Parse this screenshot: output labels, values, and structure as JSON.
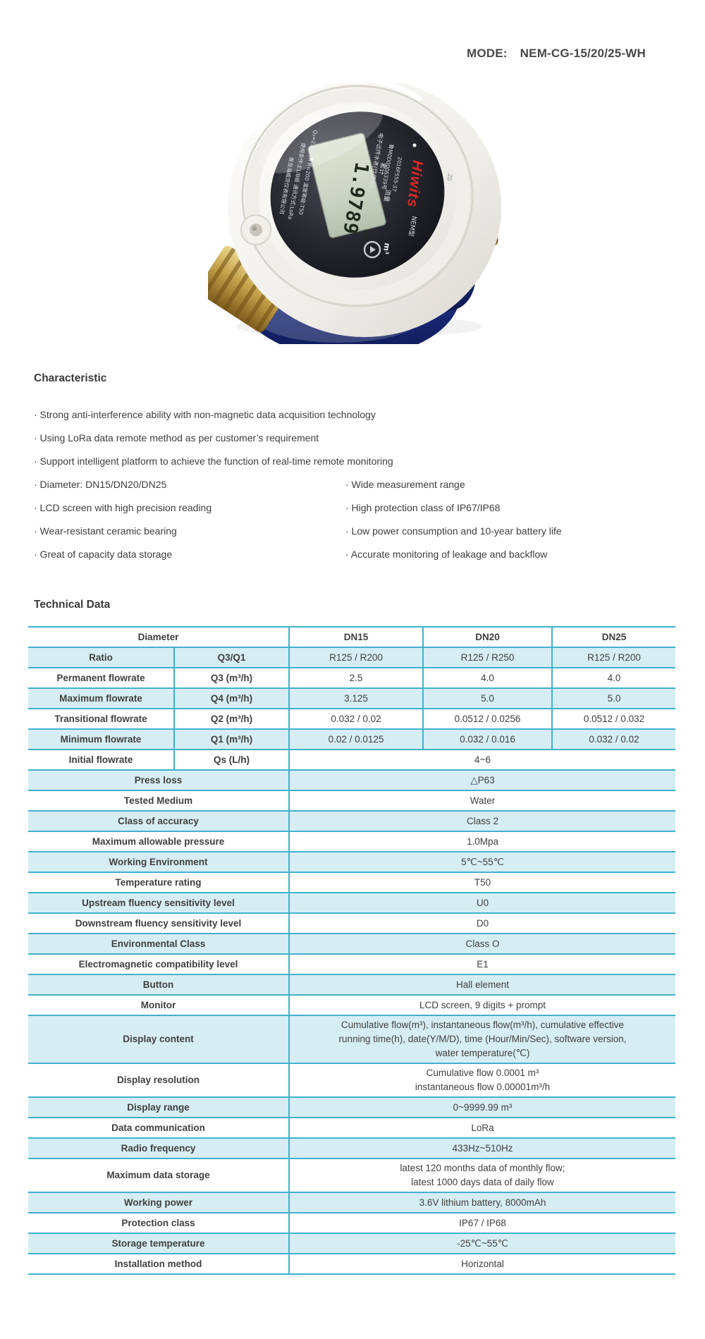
{
  "header": {
    "mode_label": "MODE:",
    "mode_value": "NEM-CG-15/20/25-WH"
  },
  "product_photo": {
    "brand": "Hiwits",
    "lcd_value": "1.9789",
    "lcd_unit_small": "m³",
    "dial_unit": "m³",
    "meter_size_mark": "20",
    "dial_text": {
      "line_type": "电子远传水表(饮用水)",
      "line_serial": "鲁M0D0006339号",
      "line_approval": "2016F555-37",
      "line_model": "NEM型",
      "line_spec": "Q₃=2.5m³/h  R=200  温度等级:T50",
      "line_condition": "使用条件:E1/B级  通讯方式:LoRa",
      "line_company": "青岛海威茨仪表有限公司",
      "label_cumulative": "累计",
      "label_flow": "流量"
    }
  },
  "characteristic": {
    "title": "Characteristic",
    "bullets": [
      "· Strong anti-interference ability with non-magnetic data acquisition technology",
      "· Using LoRa data remote method as per customer’s requirement",
      "· Support intelligent platform to achieve the function of real-time remote monitoring"
    ],
    "columns": {
      "left": [
        "· Diameter: DN15/DN20/DN25",
        "· LCD screen with high precision reading",
        "· Wear-resistant ceramic bearing",
        "· Great of capacity data storage"
      ],
      "right": [
        "· Wide measurement range",
        "· High protection class of IP67/IP68",
        "· Low power consumption and 10-year battery life",
        "· Accurate monitoring of leakage and backflow"
      ]
    }
  },
  "technical": {
    "title": "Technical Data",
    "table": {
      "rows": [
        {
          "bg": "white",
          "cells": [
            {
              "t": "Diameter",
              "b": true,
              "span": 2
            },
            {
              "t": "DN15",
              "b": true
            },
            {
              "t": "DN20",
              "b": true
            },
            {
              "t": "DN25",
              "b": true
            }
          ]
        },
        {
          "bg": "blue",
          "cells": [
            {
              "t": "Ratio",
              "b": true
            },
            {
              "t": "Q3/Q1",
              "b": true
            },
            {
              "t": "R125 / R200"
            },
            {
              "t": "R125 / R250"
            },
            {
              "t": "R125 / R200"
            }
          ]
        },
        {
          "bg": "white",
          "cells": [
            {
              "t": "Permanent flowrate",
              "b": true
            },
            {
              "t": "Q3 (m³/h)",
              "b": true
            },
            {
              "t": "2.5"
            },
            {
              "t": "4.0"
            },
            {
              "t": "4.0"
            }
          ]
        },
        {
          "bg": "blue",
          "cells": [
            {
              "t": "Maximum flowrate",
              "b": true
            },
            {
              "t": "Q4 (m³/h)",
              "b": true
            },
            {
              "t": "3.125"
            },
            {
              "t": "5.0"
            },
            {
              "t": "5.0"
            }
          ]
        },
        {
          "bg": "white",
          "cells": [
            {
              "t": "Transitional flowrate",
              "b": true
            },
            {
              "t": "Q2 (m³/h)",
              "b": true
            },
            {
              "t": "0.032 / 0.02"
            },
            {
              "t": "0.0512 / 0.0256"
            },
            {
              "t": "0.0512 / 0.032"
            }
          ]
        },
        {
          "bg": "blue",
          "cells": [
            {
              "t": "Minimum flowrate",
              "b": true
            },
            {
              "t": "Q1 (m³/h)",
              "b": true
            },
            {
              "t": "0.02 / 0.0125"
            },
            {
              "t": "0.032 / 0.016"
            },
            {
              "t": "0.032 / 0.02"
            }
          ]
        },
        {
          "bg": "white",
          "cells": [
            {
              "t": "Initial flowrate",
              "b": true
            },
            {
              "t": "Qs (L/h)",
              "b": true
            },
            {
              "t": "4~6",
              "span": 3
            }
          ]
        },
        {
          "bg": "blue",
          "cells": [
            {
              "t": "Press loss",
              "b": true,
              "span": 2
            },
            {
              "t": "△P63",
              "span": 3
            }
          ]
        },
        {
          "bg": "white",
          "cells": [
            {
              "t": "Tested Medium",
              "b": true,
              "span": 2
            },
            {
              "t": "Water",
              "span": 3
            }
          ]
        },
        {
          "bg": "blue",
          "cells": [
            {
              "t": "Class of accuracy",
              "b": true,
              "span": 2
            },
            {
              "t": "Class 2",
              "span": 3
            }
          ]
        },
        {
          "bg": "white",
          "cells": [
            {
              "t": "Maximum allowable pressure",
              "b": true,
              "span": 2
            },
            {
              "t": "1.0Mpa",
              "span": 3
            }
          ]
        },
        {
          "bg": "blue",
          "cells": [
            {
              "t": "Working Environment",
              "b": true,
              "span": 2
            },
            {
              "t": "5℃~55℃",
              "span": 3
            }
          ]
        },
        {
          "bg": "white",
          "cells": [
            {
              "t": "Temperature rating",
              "b": true,
              "span": 2
            },
            {
              "t": "T50",
              "span": 3
            }
          ]
        },
        {
          "bg": "blue",
          "cells": [
            {
              "t": "Upstream fluency sensitivity level",
              "b": true,
              "span": 2
            },
            {
              "t": "U0",
              "span": 3
            }
          ]
        },
        {
          "bg": "white",
          "cells": [
            {
              "t": "Downstream fluency sensitivity level",
              "b": true,
              "span": 2
            },
            {
              "t": "D0",
              "span": 3
            }
          ]
        },
        {
          "bg": "blue",
          "cells": [
            {
              "t": "Environmental Class",
              "b": true,
              "span": 2
            },
            {
              "t": "Class O",
              "span": 3
            }
          ]
        },
        {
          "bg": "white",
          "cells": [
            {
              "t": "Electromagnetic compatibility level",
              "b": true,
              "span": 2
            },
            {
              "t": "E1",
              "span": 3
            }
          ]
        },
        {
          "bg": "blue",
          "cells": [
            {
              "t": "Button",
              "b": true,
              "span": 2
            },
            {
              "t": "Hall element",
              "span": 3
            }
          ]
        },
        {
          "bg": "white",
          "cells": [
            {
              "t": "Monitor",
              "b": true,
              "span": 2
            },
            {
              "t": "LCD screen, 9 digits + prompt",
              "span": 3
            }
          ]
        },
        {
          "bg": "blue",
          "cells": [
            {
              "t": "Display content",
              "b": true,
              "span": 2
            },
            {
              "t": "Cumulative flow(m³), instantaneous flow(m³/h), cumulative effective\nrunning time(h), date(Y/M/D), time (Hour/Min/Sec), software version,\nwater temperature(℃)",
              "span": 3
            }
          ]
        },
        {
          "bg": "white",
          "cells": [
            {
              "t": "Display resolution",
              "b": true,
              "span": 2
            },
            {
              "t": "Cumulative flow 0.0001 m³\ninstantaneous flow 0.00001m³/h",
              "span": 3
            }
          ]
        },
        {
          "bg": "blue",
          "cells": [
            {
              "t": "Display range",
              "b": true,
              "span": 2
            },
            {
              "t": "0~9999.99 m³",
              "span": 3
            }
          ]
        },
        {
          "bg": "white",
          "cells": [
            {
              "t": "Data communication",
              "b": true,
              "span": 2
            },
            {
              "t": "LoRa",
              "span": 3
            }
          ]
        },
        {
          "bg": "blue",
          "cells": [
            {
              "t": "Radio frequency",
              "b": true,
              "span": 2
            },
            {
              "t": "433Hz~510Hz",
              "span": 3
            }
          ]
        },
        {
          "bg": "white",
          "cells": [
            {
              "t": "Maximum data storage",
              "b": true,
              "span": 2
            },
            {
              "t": "latest 120 months data of monthly flow;\nlatest 1000 days data of daily flow",
              "span": 3
            }
          ]
        },
        {
          "bg": "blue",
          "cells": [
            {
              "t": "Working power",
              "b": true,
              "span": 2
            },
            {
              "t": "3.6V lithium battery, 8000mAh",
              "span": 3
            }
          ]
        },
        {
          "bg": "white",
          "cells": [
            {
              "t": "Protection class",
              "b": true,
              "span": 2
            },
            {
              "t": "IP67 / IP68",
              "span": 3
            }
          ]
        },
        {
          "bg": "blue",
          "cells": [
            {
              "t": "Storage temperature",
              "b": true,
              "span": 2
            },
            {
              "t": "-25℃~55℃",
              "span": 3
            }
          ]
        },
        {
          "bg": "white",
          "cells": [
            {
              "t": "Installation method",
              "b": true,
              "span": 2
            },
            {
              "t": "Horizontal",
              "span": 3
            }
          ]
        }
      ]
    }
  },
  "colors": {
    "table_border": "#41b1cd",
    "row_blue": "#d6edf4",
    "brand_red": "#d42a26"
  }
}
